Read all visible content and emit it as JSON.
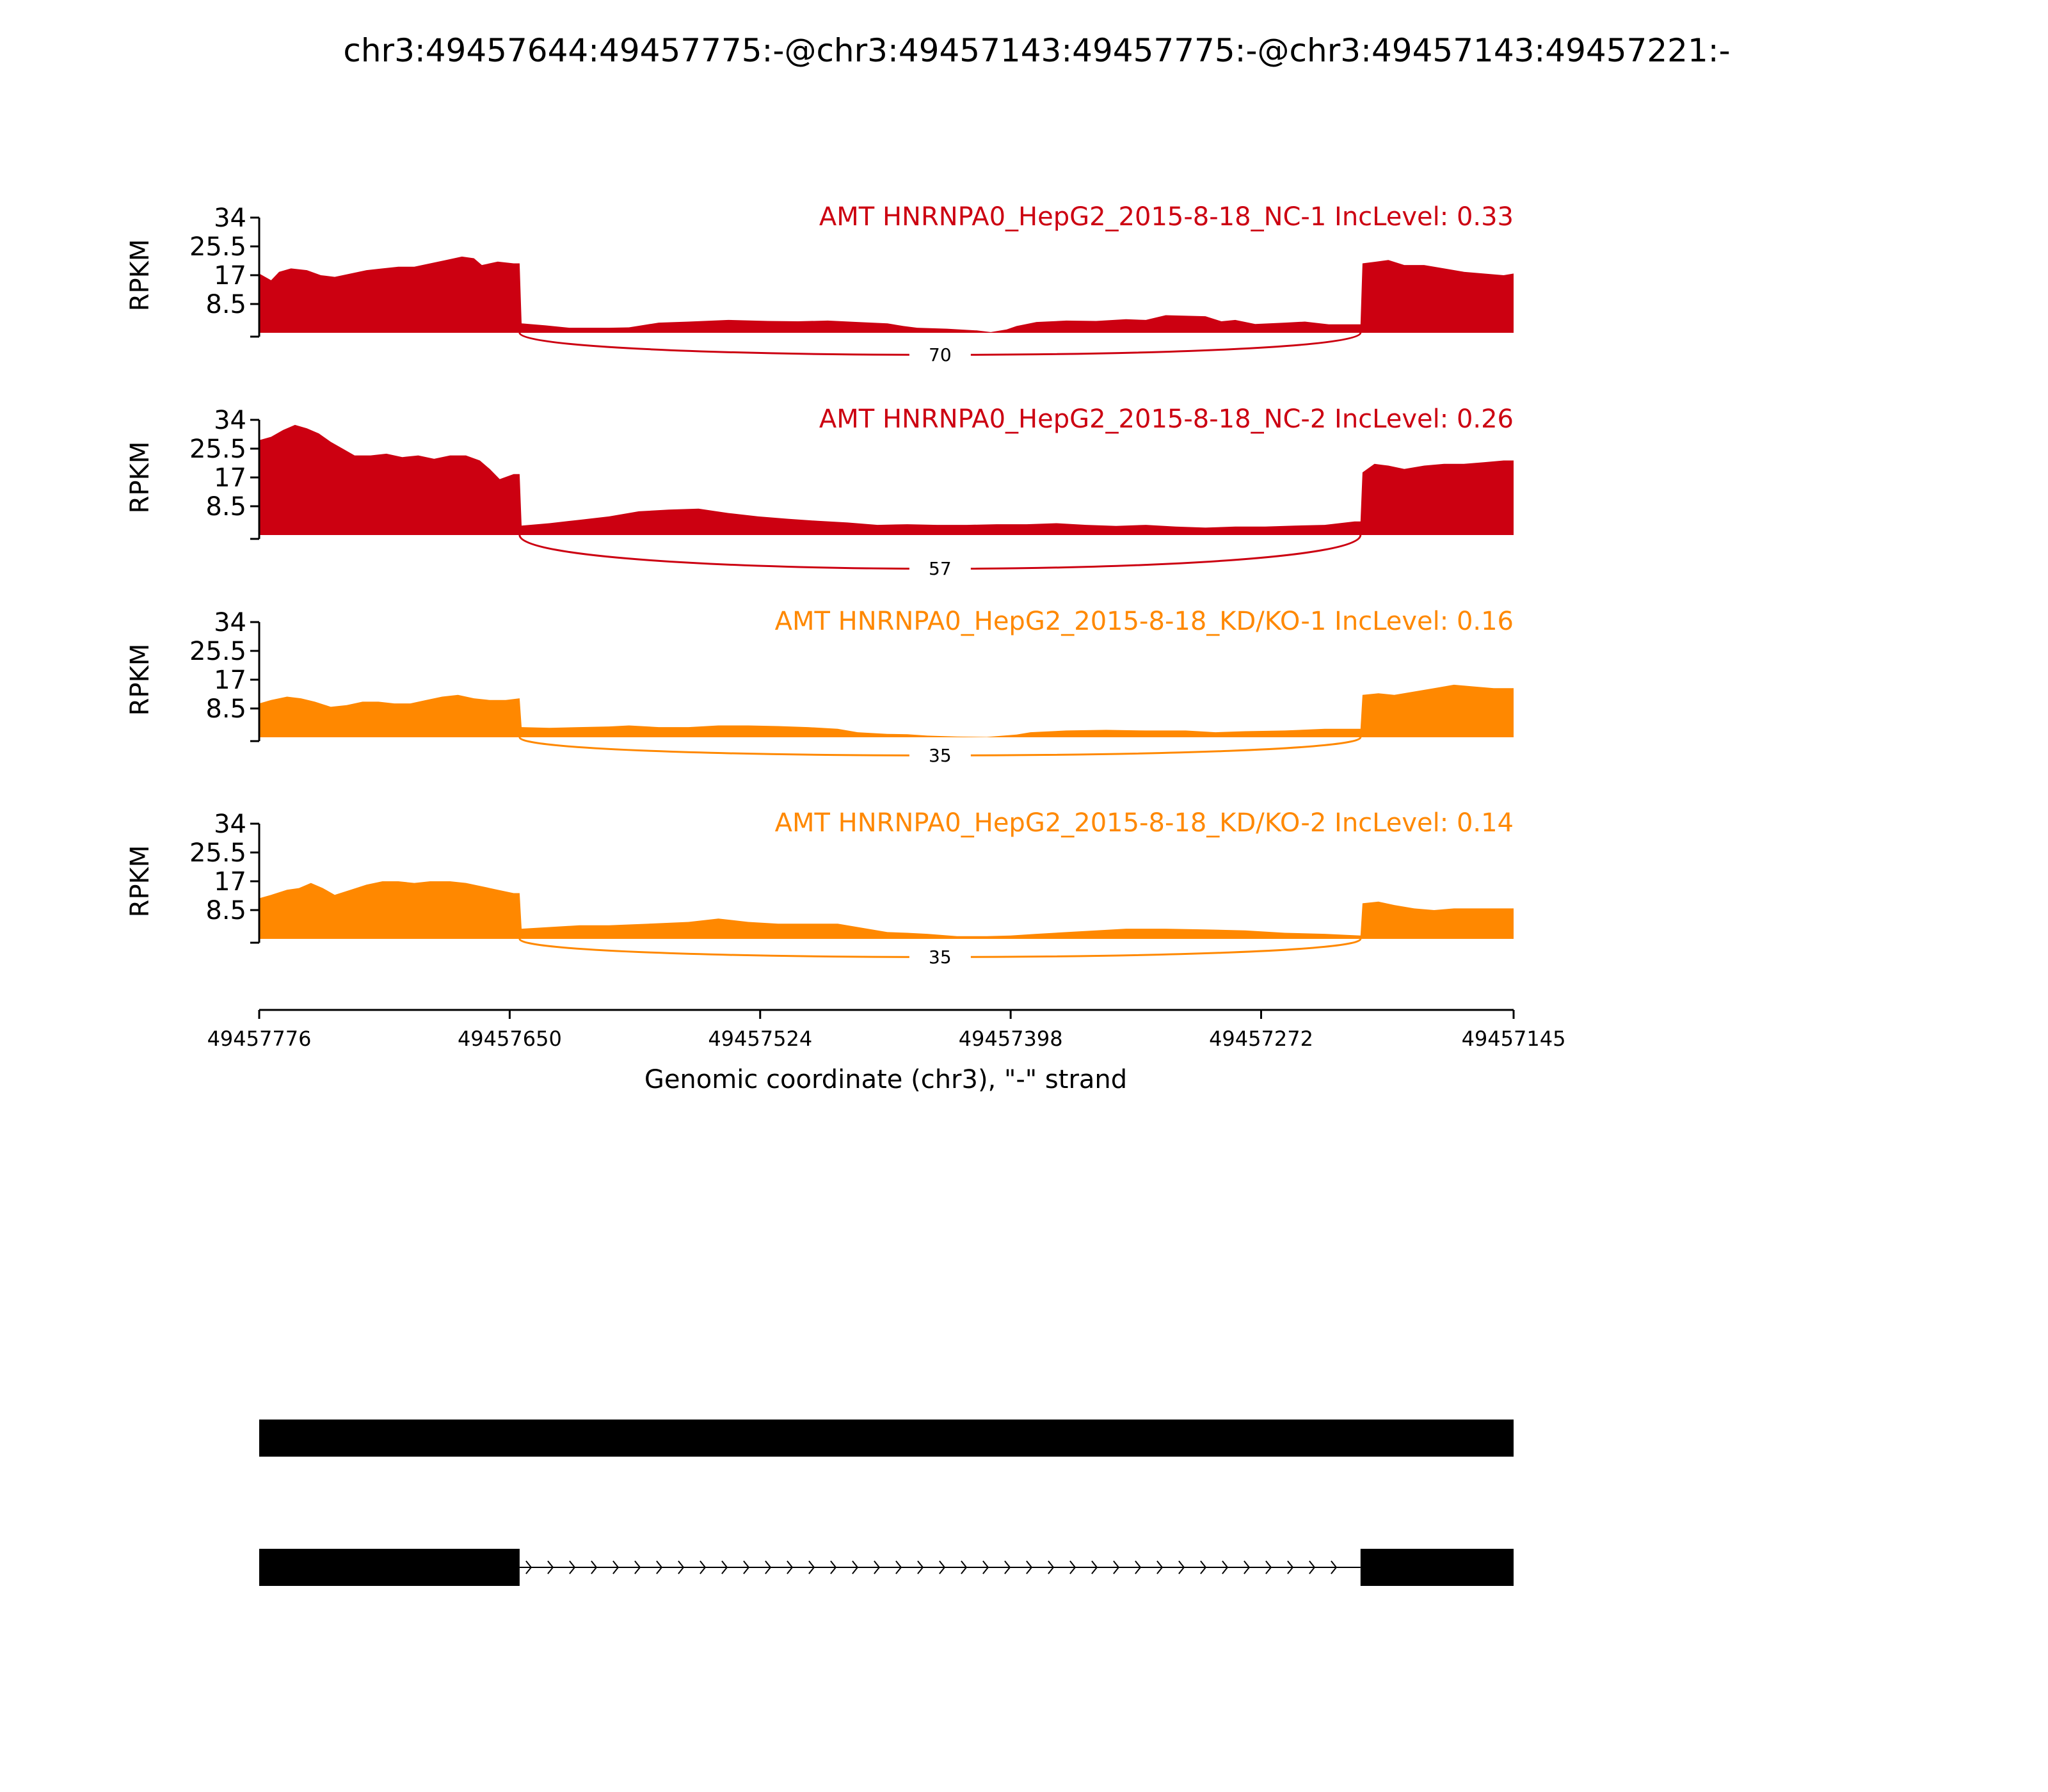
{
  "title": "chr3:49457644:49457775:-@chr3:49457143:49457775:-@chr3:49457143:49457221:-",
  "chart_data": {
    "type": "area",
    "ylabel": "RPKM",
    "xlabel": "Genomic coordinate (chr3), \"-\" strand",
    "ylim": [
      0,
      34
    ],
    "yticks": [
      "34",
      "25.5",
      "17",
      "8.5"
    ],
    "xlim": [
      49457776,
      49457145
    ],
    "xticks": [
      "49457776",
      "49457650",
      "49457524",
      "49457398",
      "49457272",
      "49457145"
    ],
    "tracks": [
      {
        "name": "AMT HNRNPA0_HepG2_2015-8-18_NC-1 IncLevel: 0.33",
        "color": "#cc0011",
        "junction": {
          "from": 49457645,
          "to": 49457222,
          "count": "70"
        },
        "coverage": [
          [
            49457776,
            17.5
          ],
          [
            49457770,
            15.5
          ],
          [
            49457766,
            18.0
          ],
          [
            49457760,
            19.0
          ],
          [
            49457752,
            18.5
          ],
          [
            49457745,
            17.0
          ],
          [
            49457738,
            16.5
          ],
          [
            49457730,
            17.5
          ],
          [
            49457722,
            18.5
          ],
          [
            49457714,
            19.0
          ],
          [
            49457706,
            19.5
          ],
          [
            49457698,
            19.5
          ],
          [
            49457690,
            20.5
          ],
          [
            49457682,
            21.5
          ],
          [
            49457674,
            22.5
          ],
          [
            49457668,
            22.0
          ],
          [
            49457664,
            20.0
          ],
          [
            49457656,
            21.0
          ],
          [
            49457648,
            20.5
          ],
          [
            49457645,
            20.5
          ],
          [
            49457644,
            2.8
          ],
          [
            49457632,
            2.2
          ],
          [
            49457620,
            1.5
          ],
          [
            49457600,
            1.5
          ],
          [
            49457590,
            1.6
          ],
          [
            49457575,
            3.0
          ],
          [
            49457560,
            3.3
          ],
          [
            49457540,
            3.8
          ],
          [
            49457520,
            3.5
          ],
          [
            49457505,
            3.4
          ],
          [
            49457490,
            3.6
          ],
          [
            49457475,
            3.2
          ],
          [
            49457460,
            2.8
          ],
          [
            49457452,
            2.0
          ],
          [
            49457445,
            1.5
          ],
          [
            49457430,
            1.2
          ],
          [
            49457415,
            0.7
          ],
          [
            49457408,
            0.2
          ],
          [
            49457400,
            1.0
          ],
          [
            49457395,
            2.0
          ],
          [
            49457385,
            3.2
          ],
          [
            49457370,
            3.6
          ],
          [
            49457355,
            3.5
          ],
          [
            49457340,
            4.0
          ],
          [
            49457330,
            3.8
          ],
          [
            49457320,
            5.2
          ],
          [
            49457300,
            4.9
          ],
          [
            49457292,
            3.4
          ],
          [
            49457285,
            3.8
          ],
          [
            49457275,
            2.6
          ],
          [
            49457260,
            3.0
          ],
          [
            49457250,
            3.3
          ],
          [
            49457238,
            2.5
          ],
          [
            49457225,
            2.5
          ],
          [
            49457222,
            2.5
          ],
          [
            49457221,
            20.5
          ],
          [
            49457214,
            21.0
          ],
          [
            49457208,
            21.5
          ],
          [
            49457200,
            20.0
          ],
          [
            49457190,
            20.0
          ],
          [
            49457180,
            19.0
          ],
          [
            49457170,
            18.0
          ],
          [
            49457160,
            17.5
          ],
          [
            49457150,
            17.0
          ],
          [
            49457145,
            17.5
          ]
        ]
      },
      {
        "name": "AMT HNRNPA0_HepG2_2015-8-18_NC-2 IncLevel: 0.26",
        "color": "#cc0011",
        "junction": {
          "from": 49457645,
          "to": 49457222,
          "count": "57"
        },
        "coverage": [
          [
            49457776,
            28.0
          ],
          [
            49457770,
            29.0
          ],
          [
            49457764,
            31.0
          ],
          [
            49457758,
            32.5
          ],
          [
            49457752,
            31.5
          ],
          [
            49457746,
            30.0
          ],
          [
            49457740,
            27.5
          ],
          [
            49457734,
            25.5
          ],
          [
            49457728,
            23.5
          ],
          [
            49457720,
            23.5
          ],
          [
            49457712,
            24.0
          ],
          [
            49457704,
            23.0
          ],
          [
            49457696,
            23.5
          ],
          [
            49457688,
            22.5
          ],
          [
            49457680,
            23.5
          ],
          [
            49457672,
            23.5
          ],
          [
            49457665,
            22.0
          ],
          [
            49457660,
            19.5
          ],
          [
            49457655,
            16.5
          ],
          [
            49457648,
            18.0
          ],
          [
            49457645,
            18.0
          ],
          [
            49457644,
            2.8
          ],
          [
            49457630,
            3.5
          ],
          [
            49457615,
            4.5
          ],
          [
            49457600,
            5.5
          ],
          [
            49457585,
            7.0
          ],
          [
            49457570,
            7.5
          ],
          [
            49457555,
            7.8
          ],
          [
            49457540,
            6.5
          ],
          [
            49457525,
            5.5
          ],
          [
            49457510,
            4.8
          ],
          [
            49457495,
            4.2
          ],
          [
            49457480,
            3.7
          ],
          [
            49457465,
            3.0
          ],
          [
            49457450,
            3.2
          ],
          [
            49457435,
            3.0
          ],
          [
            49457420,
            3.0
          ],
          [
            49457405,
            3.2
          ],
          [
            49457390,
            3.2
          ],
          [
            49457375,
            3.5
          ],
          [
            49457360,
            3.0
          ],
          [
            49457345,
            2.7
          ],
          [
            49457330,
            3.0
          ],
          [
            49457315,
            2.5
          ],
          [
            49457300,
            2.2
          ],
          [
            49457285,
            2.5
          ],
          [
            49457270,
            2.5
          ],
          [
            49457255,
            2.8
          ],
          [
            49457240,
            3.0
          ],
          [
            49457225,
            4.0
          ],
          [
            49457222,
            4.0
          ],
          [
            49457221,
            18.5
          ],
          [
            49457215,
            21.0
          ],
          [
            49457208,
            20.5
          ],
          [
            49457200,
            19.5
          ],
          [
            49457190,
            20.5
          ],
          [
            49457180,
            21.0
          ],
          [
            49457170,
            21.0
          ],
          [
            49457160,
            21.5
          ],
          [
            49457150,
            22.0
          ],
          [
            49457145,
            22.0
          ]
        ]
      },
      {
        "name": "AMT HNRNPA0_HepG2_2015-8-18_KD/KO-1 IncLevel: 0.16",
        "color": "#ff8800",
        "junction": {
          "from": 49457645,
          "to": 49457222,
          "count": "35"
        },
        "coverage": [
          [
            49457776,
            10.0
          ],
          [
            49457770,
            11.0
          ],
          [
            49457762,
            12.0
          ],
          [
            49457755,
            11.5
          ],
          [
            49457748,
            10.5
          ],
          [
            49457740,
            9.0
          ],
          [
            49457732,
            9.5
          ],
          [
            49457724,
            10.5
          ],
          [
            49457716,
            10.5
          ],
          [
            49457708,
            10.0
          ],
          [
            49457700,
            10.0
          ],
          [
            49457692,
            11.0
          ],
          [
            49457684,
            12.0
          ],
          [
            49457676,
            12.5
          ],
          [
            49457668,
            11.5
          ],
          [
            49457660,
            11.0
          ],
          [
            49457652,
            11.0
          ],
          [
            49457645,
            11.5
          ],
          [
            49457644,
            3.0
          ],
          [
            49457630,
            2.8
          ],
          [
            49457615,
            3.0
          ],
          [
            49457600,
            3.2
          ],
          [
            49457590,
            3.5
          ],
          [
            49457575,
            3.0
          ],
          [
            49457560,
            3.0
          ],
          [
            49457545,
            3.5
          ],
          [
            49457530,
            3.5
          ],
          [
            49457515,
            3.3
          ],
          [
            49457500,
            3.0
          ],
          [
            49457485,
            2.5
          ],
          [
            49457475,
            1.5
          ],
          [
            49457460,
            1.0
          ],
          [
            49457450,
            0.9
          ],
          [
            49457440,
            0.5
          ],
          [
            49457425,
            0.2
          ],
          [
            49457410,
            0.1
          ],
          [
            49457395,
            0.8
          ],
          [
            49457388,
            1.5
          ],
          [
            49457370,
            2.0
          ],
          [
            49457350,
            2.2
          ],
          [
            49457330,
            2.0
          ],
          [
            49457310,
            2.0
          ],
          [
            49457295,
            1.5
          ],
          [
            49457280,
            1.8
          ],
          [
            49457260,
            2.0
          ],
          [
            49457240,
            2.5
          ],
          [
            49457222,
            2.5
          ],
          [
            49457221,
            12.5
          ],
          [
            49457213,
            13.0
          ],
          [
            49457205,
            12.5
          ],
          [
            49457195,
            13.5
          ],
          [
            49457185,
            14.5
          ],
          [
            49457175,
            15.5
          ],
          [
            49457165,
            15.0
          ],
          [
            49457155,
            14.5
          ],
          [
            49457145,
            14.5
          ]
        ]
      },
      {
        "name": "AMT HNRNPA0_HepG2_2015-8-18_KD/KO-2 IncLevel: 0.14",
        "color": "#ff8800",
        "junction": {
          "from": 49457645,
          "to": 49457222,
          "count": "35"
        },
        "coverage": [
          [
            49457776,
            12.0
          ],
          [
            49457770,
            13.0
          ],
          [
            49457762,
            14.5
          ],
          [
            49457756,
            15.0
          ],
          [
            49457750,
            16.5
          ],
          [
            49457744,
            15.0
          ],
          [
            49457738,
            13.0
          ],
          [
            49457730,
            14.5
          ],
          [
            49457722,
            16.0
          ],
          [
            49457714,
            17.0
          ],
          [
            49457706,
            17.0
          ],
          [
            49457698,
            16.5
          ],
          [
            49457690,
            17.0
          ],
          [
            49457680,
            17.0
          ],
          [
            49457672,
            16.5
          ],
          [
            49457664,
            15.5
          ],
          [
            49457656,
            14.5
          ],
          [
            49457648,
            13.5
          ],
          [
            49457645,
            13.5
          ],
          [
            49457644,
            3.0
          ],
          [
            49457630,
            3.5
          ],
          [
            49457615,
            4.0
          ],
          [
            49457600,
            4.0
          ],
          [
            49457580,
            4.5
          ],
          [
            49457560,
            5.0
          ],
          [
            49457545,
            6.0
          ],
          [
            49457530,
            5.0
          ],
          [
            49457515,
            4.5
          ],
          [
            49457500,
            4.5
          ],
          [
            49457485,
            4.5
          ],
          [
            49457475,
            3.5
          ],
          [
            49457460,
            2.0
          ],
          [
            49457450,
            1.8
          ],
          [
            49457440,
            1.5
          ],
          [
            49457425,
            0.8
          ],
          [
            49457410,
            0.8
          ],
          [
            49457398,
            1.0
          ],
          [
            49457385,
            1.5
          ],
          [
            49457370,
            2.0
          ],
          [
            49457355,
            2.5
          ],
          [
            49457340,
            3.0
          ],
          [
            49457320,
            3.0
          ],
          [
            49457300,
            2.8
          ],
          [
            49457280,
            2.5
          ],
          [
            49457260,
            1.8
          ],
          [
            49457240,
            1.5
          ],
          [
            49457230,
            1.2
          ],
          [
            49457222,
            1.0
          ],
          [
            49457221,
            10.5
          ],
          [
            49457213,
            11.0
          ],
          [
            49457205,
            10.0
          ],
          [
            49457195,
            9.0
          ],
          [
            49457185,
            8.5
          ],
          [
            49457175,
            9.0
          ],
          [
            49457165,
            9.0
          ],
          [
            49457155,
            9.0
          ],
          [
            49457145,
            9.0
          ]
        ]
      }
    ],
    "isoforms": [
      {
        "exons": [
          [
            49457776,
            49457145
          ]
        ],
        "introns": []
      },
      {
        "exons": [
          [
            49457776,
            49457645
          ],
          [
            49457222,
            49457145
          ]
        ],
        "introns": [
          [
            49457645,
            49457222
          ]
        ]
      }
    ]
  }
}
